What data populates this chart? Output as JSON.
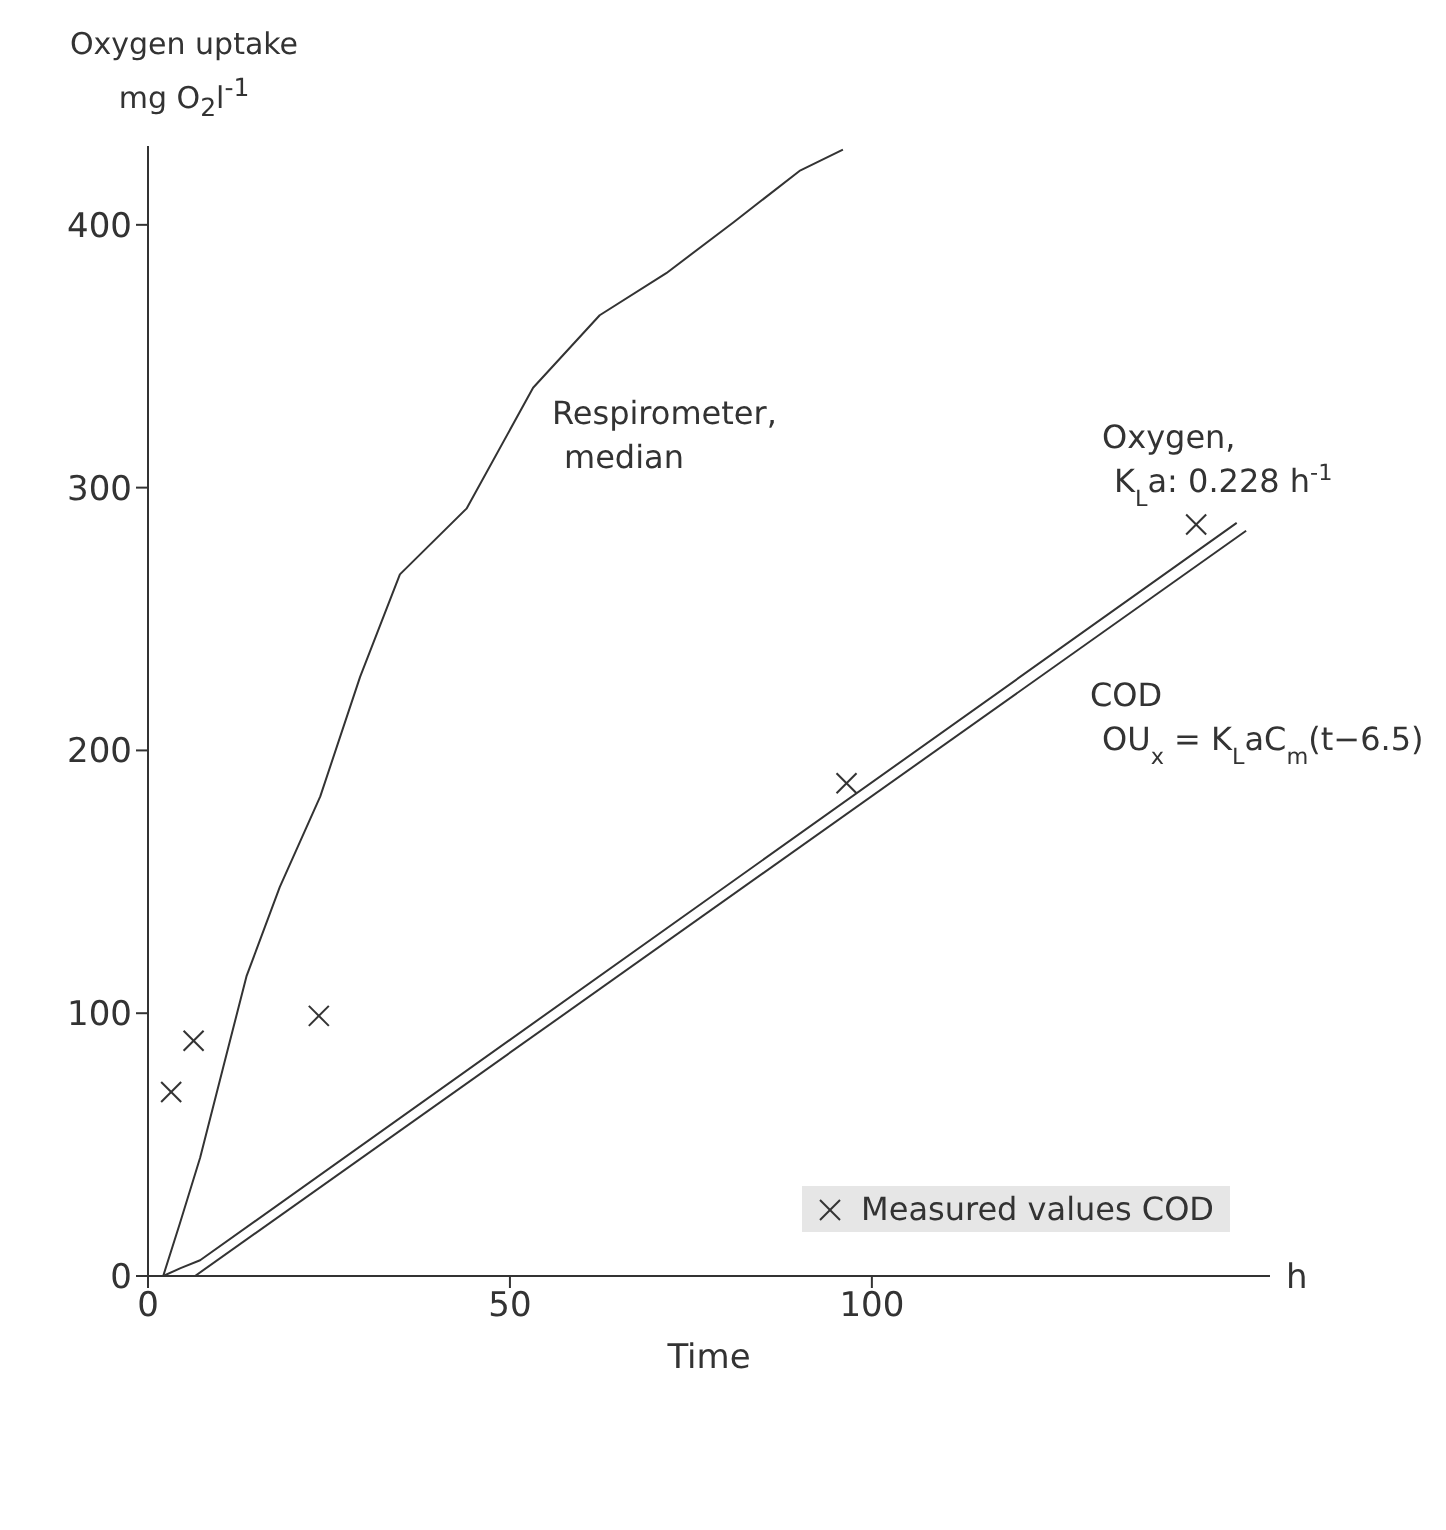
{
  "chart_data": {
    "type": "line",
    "xlabel": "Time",
    "ylabel": "Oxygen uptake mg O$_{2}$l$^{-1}$",
    "xlim": [
      0,
      155
    ],
    "ylim": [
      0,
      430
    ],
    "xticks": [
      0,
      50,
      100
    ],
    "yticks": [
      0,
      100,
      200,
      300,
      400
    ],
    "grid": false,
    "legend": "bottom right",
    "marker": "none",
    "line_style": "solid",
    "series": [
      {
        "color": "#333333",
        "x": [
          2.1,
          4.4,
          7.2,
          10.4,
          13.6,
          18.2,
          23.8,
          29.3,
          34.8,
          44,
          53.2,
          62.4,
          71.6,
          80.9,
          90,
          96
        ],
        "values": [
          0,
          20,
          45,
          79.5,
          114,
          148,
          182.5,
          228,
          267,
          292,
          338,
          365.6,
          381.6,
          401,
          420.5,
          428.6
        ]
      },
      {
        "color": "#333333",
        "x": [
          2.1,
          4.5,
          7.2,
          150.4
        ],
        "values": [
          0,
          3,
          6,
          286.6
        ]
      },
      {
        "color": "#333333",
        "x": [
          6.5,
          151.7
        ],
        "values": [
          0,
          283.6
        ]
      },
      {
        "type": "scatter",
        "name": "Measured values COD",
        "color": "#333333",
        "marker": "cross",
        "x": [
          3.2,
          6.3,
          23.6,
          96.5,
          144.8
        ],
        "values": [
          70,
          89.5,
          99,
          187.5,
          286
        ]
      }
    ],
    "annotations": [
      "h",
      "Respirometer, median",
      "Oxygen, K$_{L}$a: 0.228 h$^{-1}$",
      "COD OU$_{x}$ = K$_{L}$aC$_{m}$(t−6.5)"
    ]
  }
}
